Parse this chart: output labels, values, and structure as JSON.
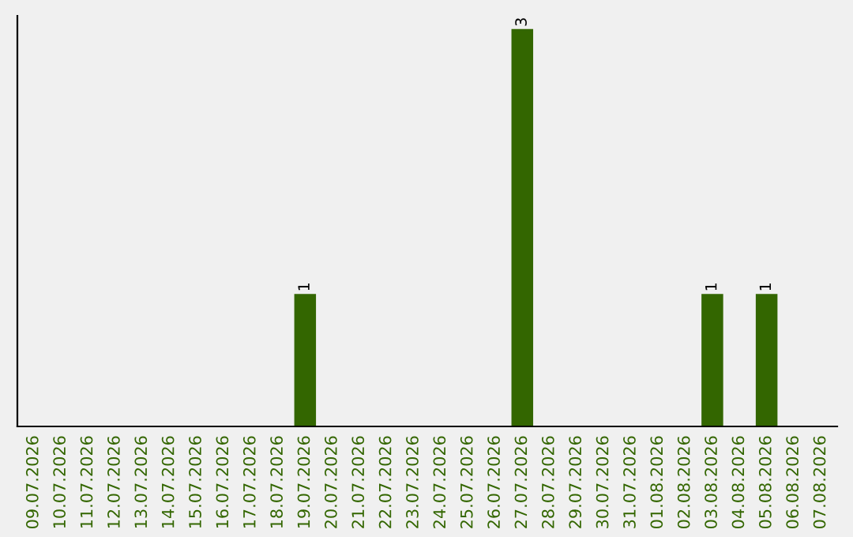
{
  "chart_data": {
    "type": "bar",
    "categories": [
      "09.07.2026",
      "10.07.2026",
      "11.07.2026",
      "12.07.2026",
      "13.07.2026",
      "14.07.2026",
      "15.07.2026",
      "16.07.2026",
      "17.07.2026",
      "18.07.2026",
      "19.07.2026",
      "20.07.2026",
      "21.07.2026",
      "22.07.2026",
      "23.07.2026",
      "24.07.2026",
      "25.07.2026",
      "26.07.2026",
      "27.07.2026",
      "28.07.2026",
      "29.07.2026",
      "30.07.2026",
      "31.07.2026",
      "01.08.2026",
      "02.08.2026",
      "03.08.2026",
      "04.08.2026",
      "05.08.2026",
      "06.08.2026",
      "07.08.2026"
    ],
    "values": [
      0,
      0,
      0,
      0,
      0,
      0,
      0,
      0,
      0,
      0,
      1,
      0,
      0,
      0,
      0,
      0,
      0,
      0,
      3,
      0,
      0,
      0,
      0,
      0,
      0,
      1,
      0,
      1,
      0,
      0
    ],
    "value_labels": [
      null,
      null,
      null,
      null,
      null,
      null,
      null,
      null,
      null,
      null,
      "1",
      null,
      null,
      null,
      null,
      null,
      null,
      null,
      "3",
      null,
      null,
      null,
      null,
      null,
      null,
      "1",
      null,
      "1",
      null,
      null
    ],
    "color": "#336600",
    "ylim": [
      0,
      3.1
    ],
    "tick_labels": "x",
    "grid": false
  }
}
